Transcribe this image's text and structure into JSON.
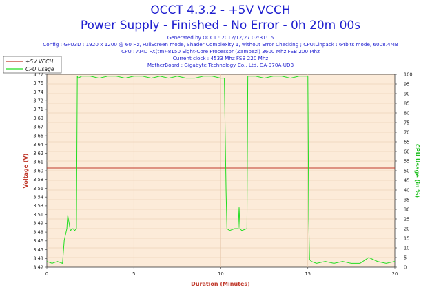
{
  "header": {
    "title": "OCCT 4.3.2 - +5V VCCH",
    "subtitle": "Power Supply - Finished - No Error - 0h 20m 00s",
    "info_lines": [
      "Generated by OCCT : 2012/12/27 02:31:15",
      "Config : GPU3D : 1920 x 1200 @ 60 Hz, FullScreen mode, Shader Complexity 1, without Error Checking ; CPU:Linpack : 64bits mode, 6008.4MB",
      "CPU : AMD FX(tm)-8150 Eight-Core Processor (Zambezi) 3600 Mhz FSB 200 Mhz",
      "Current clock : 4533 Mhz FSB 220 Mhz",
      "MotherBoard : Gigabyte Technology Co., Ltd. GA-970A-UD3"
    ]
  },
  "colors": {
    "voltage": "#c0392b",
    "cpu": "#22dd22",
    "plot_bg": "#fcebd9",
    "grid": "#e6c7aa",
    "text": "#1f1fcf"
  },
  "chart_data": {
    "type": "line",
    "xlabel": "Duration (Minutes)",
    "ylabel_left": "Voltage (V)",
    "ylabel_right": "CPU Usage (in %)",
    "xlim": [
      0,
      20
    ],
    "ylim_left": [
      3.42,
      3.77
    ],
    "ylim_right": [
      0,
      100
    ],
    "x_ticks": [
      "0",
      "5",
      "10",
      "15",
      "20"
    ],
    "y_left_ticks": [
      "3.42",
      "3.43",
      "3.45",
      "3.46",
      "3.48",
      "3.49",
      "3.51",
      "3.53",
      "3.54",
      "3.56",
      "3.58",
      "3.60",
      "3.61",
      "3.62",
      "3.64",
      "3.66",
      "3.67",
      "3.69",
      "3.71",
      "3.72",
      "3.74",
      "3.76",
      "3.77"
    ],
    "y_right_ticks": [
      "0",
      "5",
      "10",
      "15",
      "20",
      "25",
      "30",
      "35",
      "40",
      "45",
      "50",
      "55",
      "60",
      "65",
      "70",
      "75",
      "80",
      "85",
      "90",
      "95",
      "100"
    ],
    "grid": true,
    "legend_position": "top-left",
    "series": [
      {
        "name": "+5V VCCH",
        "axis": "left",
        "x": [
          0,
          20
        ],
        "y": [
          3.6,
          3.6
        ]
      },
      {
        "name": "CPU Usage",
        "axis": "right",
        "x": [
          0,
          0.3,
          0.6,
          0.9,
          1.0,
          1.05,
          1.1,
          1.15,
          1.2,
          1.35,
          1.5,
          1.6,
          1.7,
          1.75,
          1.8,
          2.0,
          2.5,
          3.0,
          3.5,
          4.0,
          4.5,
          5.0,
          5.5,
          6.0,
          6.5,
          7.0,
          7.5,
          8.0,
          8.5,
          9.0,
          9.5,
          10.0,
          10.2,
          10.3,
          10.35,
          10.5,
          10.8,
          11.0,
          11.05,
          11.1,
          11.2,
          11.5,
          11.55,
          11.6,
          12.0,
          12.5,
          13.0,
          13.5,
          14.0,
          14.5,
          14.9,
          15.0,
          15.05,
          15.1,
          15.2,
          15.5,
          16.0,
          16.5,
          17.0,
          17.5,
          18.0,
          18.5,
          19.0,
          19.5,
          20.0
        ],
        "y": [
          3,
          2,
          3,
          2,
          14,
          16,
          18,
          20,
          27,
          19,
          20,
          19,
          20,
          99,
          98,
          99,
          99,
          98,
          99,
          99,
          98,
          99,
          99,
          98,
          99,
          98,
          99,
          98,
          98,
          99,
          99,
          98,
          98,
          40,
          20,
          19,
          20,
          20,
          31,
          20,
          19,
          20,
          99,
          99,
          99,
          98,
          99,
          99,
          98,
          99,
          99,
          99,
          25,
          4,
          3,
          2,
          3,
          2,
          3,
          2,
          2,
          5,
          3,
          2,
          3
        ]
      }
    ]
  }
}
